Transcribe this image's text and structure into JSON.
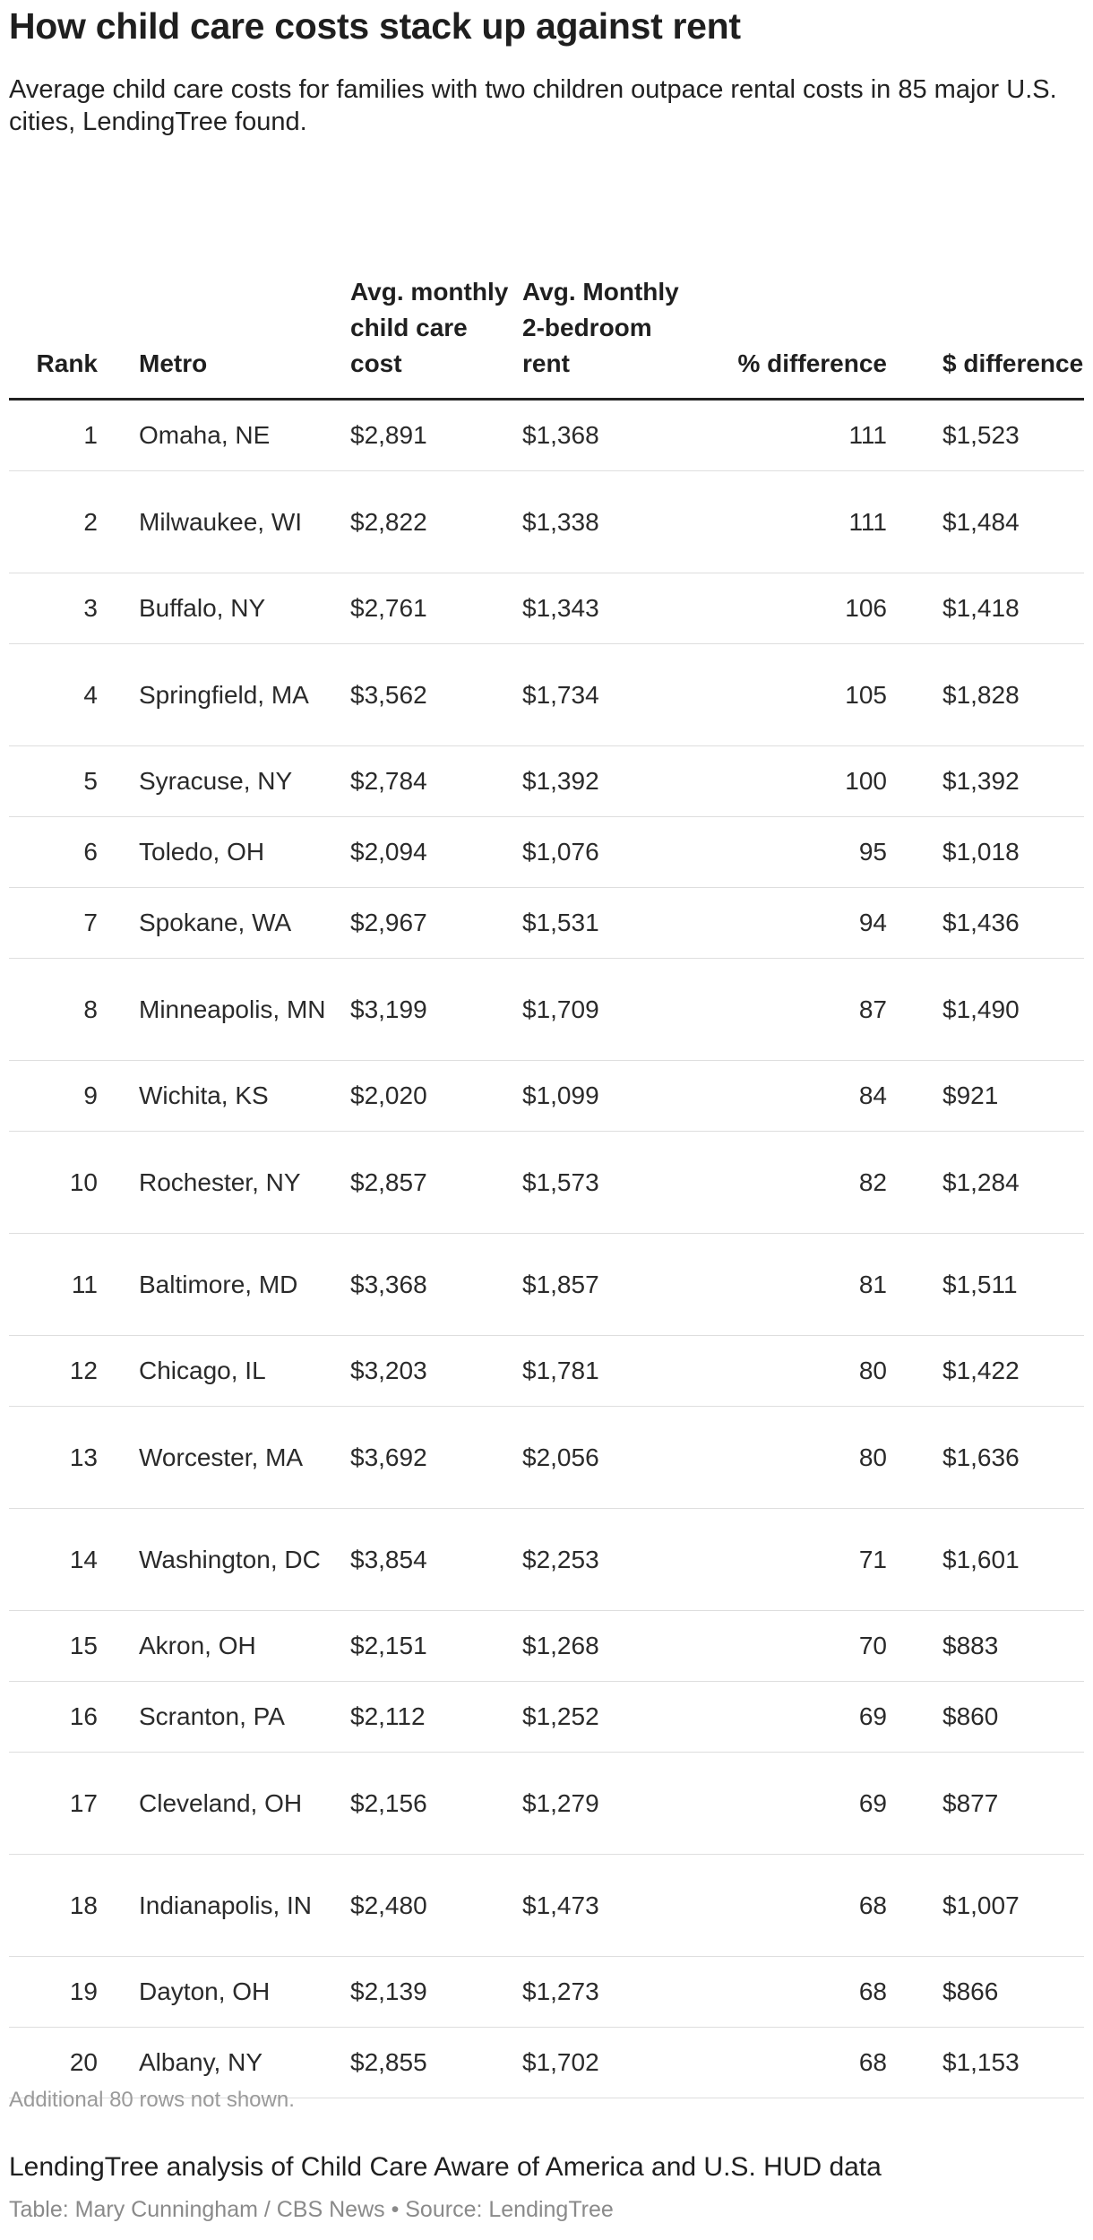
{
  "header": {
    "title": "How child care costs stack up against rent",
    "subtitle": "Average child care costs for families with two children outpace rental costs in 85 major U.S. cities, LendingTree found."
  },
  "chart_data": {
    "type": "table",
    "columns": [
      "Rank",
      "Metro",
      "Avg. monthly child care cost",
      "Avg. Monthly 2-bedroom rent",
      "% difference",
      "$ difference"
    ],
    "rows": [
      {
        "rank": "1",
        "metro": "Omaha, NE",
        "child_care": "$2,891",
        "rent": "$1,368",
        "pct_diff": "111",
        "usd_diff": "$1,523"
      },
      {
        "rank": "2",
        "metro": "Milwaukee, WI",
        "child_care": "$2,822",
        "rent": "$1,338",
        "pct_diff": "111",
        "usd_diff": "$1,484"
      },
      {
        "rank": "3",
        "metro": "Buffalo, NY",
        "child_care": "$2,761",
        "rent": "$1,343",
        "pct_diff": "106",
        "usd_diff": "$1,418"
      },
      {
        "rank": "4",
        "metro": "Springfield, MA",
        "child_care": "$3,562",
        "rent": "$1,734",
        "pct_diff": "105",
        "usd_diff": "$1,828"
      },
      {
        "rank": "5",
        "metro": "Syracuse, NY",
        "child_care": "$2,784",
        "rent": "$1,392",
        "pct_diff": "100",
        "usd_diff": "$1,392"
      },
      {
        "rank": "6",
        "metro": "Toledo, OH",
        "child_care": "$2,094",
        "rent": "$1,076",
        "pct_diff": "95",
        "usd_diff": "$1,018"
      },
      {
        "rank": "7",
        "metro": "Spokane, WA",
        "child_care": "$2,967",
        "rent": "$1,531",
        "pct_diff": "94",
        "usd_diff": "$1,436"
      },
      {
        "rank": "8",
        "metro": "Minneapolis, MN",
        "child_care": "$3,199",
        "rent": "$1,709",
        "pct_diff": "87",
        "usd_diff": "$1,490"
      },
      {
        "rank": "9",
        "metro": "Wichita, KS",
        "child_care": "$2,020",
        "rent": "$1,099",
        "pct_diff": "84",
        "usd_diff": "$921"
      },
      {
        "rank": "10",
        "metro": "Rochester, NY",
        "child_care": "$2,857",
        "rent": "$1,573",
        "pct_diff": "82",
        "usd_diff": "$1,284"
      },
      {
        "rank": "11",
        "metro": "Baltimore, MD",
        "child_care": "$3,368",
        "rent": "$1,857",
        "pct_diff": "81",
        "usd_diff": "$1,511"
      },
      {
        "rank": "12",
        "metro": "Chicago, IL",
        "child_care": "$3,203",
        "rent": "$1,781",
        "pct_diff": "80",
        "usd_diff": "$1,422"
      },
      {
        "rank": "13",
        "metro": "Worcester, MA",
        "child_care": "$3,692",
        "rent": "$2,056",
        "pct_diff": "80",
        "usd_diff": "$1,636"
      },
      {
        "rank": "14",
        "metro": "Washington, DC",
        "child_care": "$3,854",
        "rent": "$2,253",
        "pct_diff": "71",
        "usd_diff": "$1,601"
      },
      {
        "rank": "15",
        "metro": "Akron, OH",
        "child_care": "$2,151",
        "rent": "$1,268",
        "pct_diff": "70",
        "usd_diff": "$883"
      },
      {
        "rank": "16",
        "metro": "Scranton, PA",
        "child_care": "$2,112",
        "rent": "$1,252",
        "pct_diff": "69",
        "usd_diff": "$860"
      },
      {
        "rank": "17",
        "metro": "Cleveland, OH",
        "child_care": "$2,156",
        "rent": "$1,279",
        "pct_diff": "69",
        "usd_diff": "$877"
      },
      {
        "rank": "18",
        "metro": "Indianapolis, IN",
        "child_care": "$2,480",
        "rent": "$1,473",
        "pct_diff": "68",
        "usd_diff": "$1,007"
      },
      {
        "rank": "19",
        "metro": "Dayton, OH",
        "child_care": "$2,139",
        "rent": "$1,273",
        "pct_diff": "68",
        "usd_diff": "$866"
      },
      {
        "rank": "20",
        "metro": "Albany, NY",
        "child_care": "$2,855",
        "rent": "$1,702",
        "pct_diff": "68",
        "usd_diff": "$1,153"
      }
    ]
  },
  "footer": {
    "note": "Additional 80 rows not shown.",
    "source": "LendingTree analysis of Child Care Aware of America and U.S. HUD data",
    "credit": "Table: Mary Cunningham / CBS News • Source: LendingTree"
  }
}
